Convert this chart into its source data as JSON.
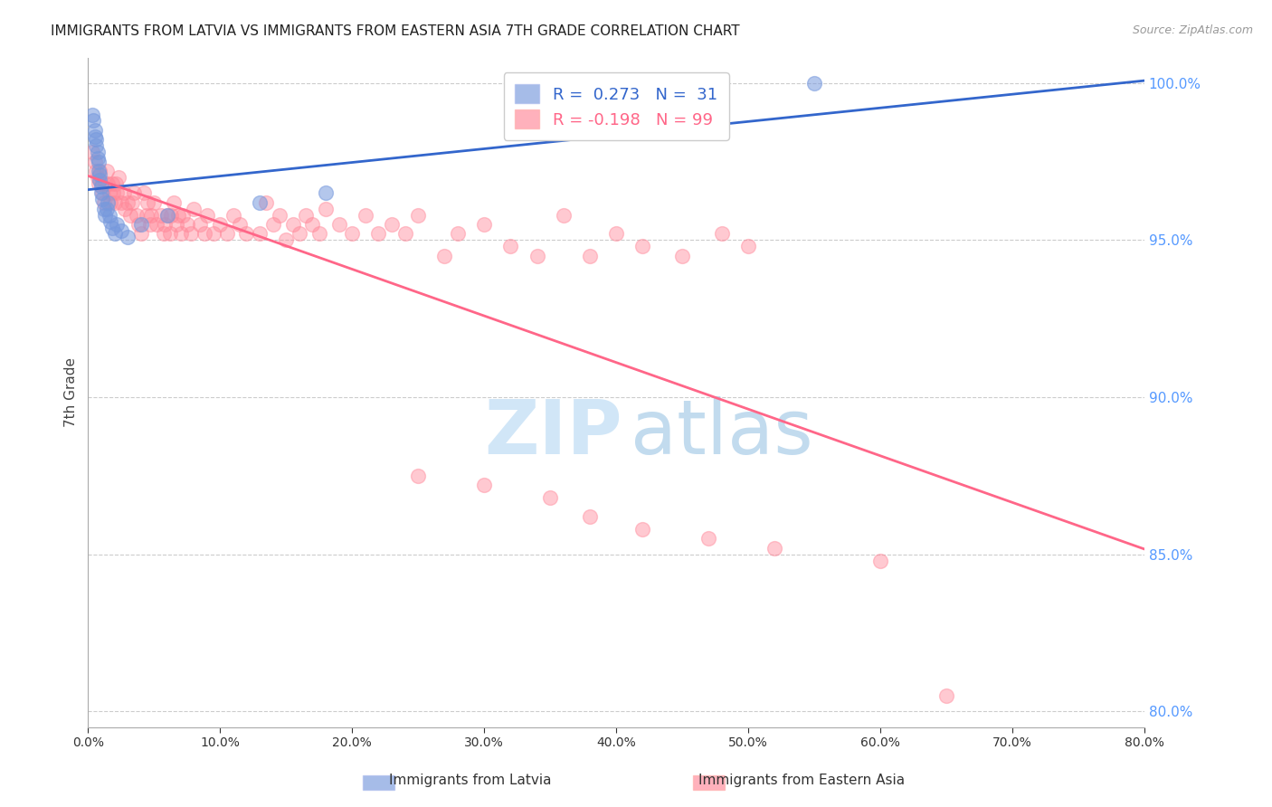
{
  "title": "IMMIGRANTS FROM LATVIA VS IMMIGRANTS FROM EASTERN ASIA 7TH GRADE CORRELATION CHART",
  "source": "Source: ZipAtlas.com",
  "ylabel_left": "7th Grade",
  "r_latvia": 0.273,
  "n_latvia": 31,
  "r_eastern_asia": -0.198,
  "n_eastern_asia": 99,
  "color_latvia": "#7799DD",
  "color_eastern_asia": "#FF8899",
  "trendline_latvia": "#3366CC",
  "trendline_eastern_asia": "#FF6688",
  "xmin": 0.0,
  "xmax": 0.8,
  "ymin": 0.795,
  "ymax": 1.008,
  "ytick_right_color": "#5599FF",
  "legend_labels": [
    "Immigrants from Latvia",
    "Immigrants from Eastern Asia"
  ],
  "latvia_x": [
    0.003,
    0.004,
    0.005,
    0.005,
    0.006,
    0.006,
    0.007,
    0.007,
    0.008,
    0.008,
    0.009,
    0.009,
    0.01,
    0.01,
    0.011,
    0.012,
    0.013,
    0.014,
    0.015,
    0.016,
    0.017,
    0.018,
    0.02,
    0.022,
    0.025,
    0.03,
    0.04,
    0.06,
    0.13,
    0.18,
    0.55
  ],
  "latvia_y": [
    0.99,
    0.988,
    0.985,
    0.983,
    0.982,
    0.98,
    0.978,
    0.976,
    0.975,
    0.972,
    0.971,
    0.969,
    0.967,
    0.965,
    0.963,
    0.96,
    0.958,
    0.96,
    0.962,
    0.958,
    0.956,
    0.954,
    0.952,
    0.955,
    0.953,
    0.951,
    0.955,
    0.958,
    0.962,
    0.965,
    1.0
  ],
  "eastern_asia_x": [
    0.003,
    0.005,
    0.006,
    0.007,
    0.008,
    0.009,
    0.01,
    0.011,
    0.012,
    0.013,
    0.014,
    0.015,
    0.016,
    0.017,
    0.018,
    0.019,
    0.02,
    0.021,
    0.022,
    0.023,
    0.025,
    0.027,
    0.028,
    0.03,
    0.032,
    0.033,
    0.035,
    0.037,
    0.038,
    0.04,
    0.042,
    0.044,
    0.045,
    0.047,
    0.048,
    0.05,
    0.052,
    0.055,
    0.057,
    0.058,
    0.06,
    0.062,
    0.063,
    0.065,
    0.067,
    0.068,
    0.07,
    0.072,
    0.075,
    0.078,
    0.08,
    0.085,
    0.088,
    0.09,
    0.095,
    0.1,
    0.105,
    0.11,
    0.115,
    0.12,
    0.13,
    0.135,
    0.14,
    0.145,
    0.15,
    0.155,
    0.16,
    0.165,
    0.17,
    0.175,
    0.18,
    0.19,
    0.2,
    0.21,
    0.22,
    0.23,
    0.24,
    0.25,
    0.27,
    0.28,
    0.3,
    0.32,
    0.34,
    0.36,
    0.38,
    0.4,
    0.42,
    0.45,
    0.48,
    0.5,
    0.25,
    0.3,
    0.35,
    0.38,
    0.42,
    0.47,
    0.52,
    0.6,
    0.65
  ],
  "eastern_asia_y": [
    0.978,
    0.975,
    0.972,
    0.97,
    0.968,
    0.972,
    0.968,
    0.965,
    0.962,
    0.968,
    0.972,
    0.968,
    0.965,
    0.962,
    0.968,
    0.965,
    0.962,
    0.968,
    0.965,
    0.97,
    0.962,
    0.965,
    0.96,
    0.962,
    0.958,
    0.962,
    0.965,
    0.958,
    0.955,
    0.952,
    0.965,
    0.958,
    0.962,
    0.955,
    0.958,
    0.962,
    0.955,
    0.958,
    0.952,
    0.955,
    0.958,
    0.952,
    0.958,
    0.962,
    0.955,
    0.958,
    0.952,
    0.958,
    0.955,
    0.952,
    0.96,
    0.955,
    0.952,
    0.958,
    0.952,
    0.955,
    0.952,
    0.958,
    0.955,
    0.952,
    0.952,
    0.962,
    0.955,
    0.958,
    0.95,
    0.955,
    0.952,
    0.958,
    0.955,
    0.952,
    0.96,
    0.955,
    0.952,
    0.958,
    0.952,
    0.955,
    0.952,
    0.958,
    0.945,
    0.952,
    0.955,
    0.948,
    0.945,
    0.958,
    0.945,
    0.952,
    0.948,
    0.945,
    0.952,
    0.948,
    0.875,
    0.872,
    0.868,
    0.862,
    0.858,
    0.855,
    0.852,
    0.848,
    0.805
  ]
}
